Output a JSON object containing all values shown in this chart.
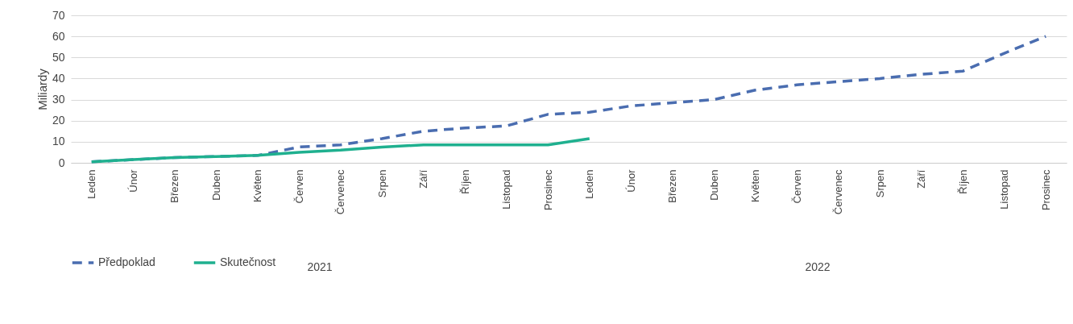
{
  "chart_data": {
    "type": "line",
    "ylabel": "Miliardy",
    "categories": [
      "Leden",
      "Únor",
      "Březen",
      "Duben",
      "Květen",
      "Červen",
      "Červenec",
      "Srpen",
      "Září",
      "Říjen",
      "Listopad",
      "Prosinec",
      "Leden",
      "Únor",
      "Březen",
      "Duben",
      "Květen",
      "Červen",
      "Červenec",
      "Srpen",
      "Září",
      "Říjen",
      "Listopad",
      "Prosinec"
    ],
    "series": [
      {
        "name": "Předpoklad",
        "color": "#4a6db0",
        "line_style": "dashed",
        "values": [
          0.5,
          1.5,
          2.5,
          3,
          3.5,
          7.5,
          8.5,
          11.5,
          15,
          16.5,
          17.5,
          23,
          24,
          27,
          28.5,
          30,
          34.5,
          37,
          38.5,
          40,
          42,
          43.5,
          52,
          60
        ]
      },
      {
        "name": "Skutečnost",
        "color": "#1fb08f",
        "line_style": "solid",
        "values": [
          0.5,
          1.5,
          2.5,
          3,
          3.5,
          5,
          6,
          7.5,
          8.5,
          8.5,
          8.5,
          8.5,
          11.5,
          null,
          null,
          null,
          null,
          null,
          null,
          null,
          null,
          null,
          null,
          null
        ]
      }
    ],
    "annotations": [
      "2021",
      "2022"
    ],
    "ylim": [
      0,
      70
    ],
    "yticks": [
      0,
      10,
      20,
      30,
      40,
      50,
      60,
      70
    ],
    "grid": "y",
    "legend": "bottom",
    "marker": "none"
  }
}
